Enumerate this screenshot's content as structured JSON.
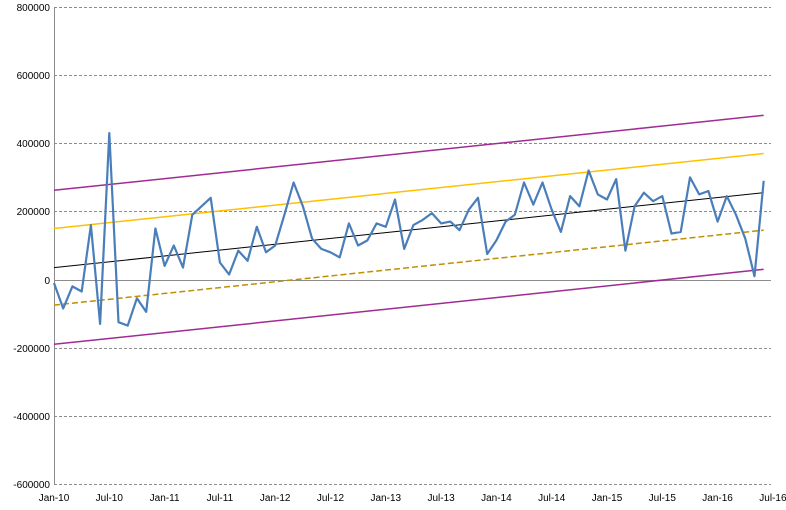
{
  "chart_data": {
    "type": "line",
    "title": "",
    "xlabel": "",
    "ylabel": "",
    "ylim": [
      -600000,
      800000
    ],
    "y_ticks": [
      800000,
      600000,
      400000,
      200000,
      0,
      -200000,
      -400000,
      -600000
    ],
    "y_tick_labels": [
      "800000",
      "600000",
      "400000",
      "200000",
      "0",
      "-200000",
      "-400000",
      "-600000"
    ],
    "x_tick_labels": [
      "Jan-10",
      "Jul-10",
      "Jan-11",
      "Jul-11",
      "Jan-12",
      "Jul-12",
      "Jan-13",
      "Jul-13",
      "Jan-14",
      "Jul-14",
      "Jan-15",
      "Jul-15",
      "Jan-16",
      "Jul-16"
    ],
    "x_start": "Jan-10",
    "grid": {
      "horizontal": true,
      "style": "dashed"
    },
    "legend": "none",
    "series": [
      {
        "color": "#4a7ebb",
        "values": [
          -10000,
          -85000,
          -20000,
          -35000,
          160000,
          -130000,
          430000,
          -125000,
          -135000,
          -55000,
          -95000,
          150000,
          40000,
          100000,
          35000,
          190000,
          215000,
          240000,
          50000,
          15000,
          85000,
          55000,
          155000,
          80000,
          100000,
          190000,
          285000,
          215000,
          120000,
          90000,
          80000,
          65000,
          165000,
          100000,
          115000,
          165000,
          155000,
          235000,
          90000,
          160000,
          175000,
          195000,
          165000,
          170000,
          145000,
          205000,
          240000,
          75000,
          115000,
          170000,
          190000,
          285000,
          220000,
          285000,
          205000,
          140000,
          245000,
          215000,
          320000,
          250000,
          235000,
          295000,
          85000,
          215000,
          255000,
          230000,
          245000,
          135000,
          140000,
          300000,
          250000,
          260000,
          170000,
          245000,
          190000,
          120000,
          10000,
          290000
        ]
      }
    ],
    "reference_lines": [
      {
        "kind": "trend",
        "color": "#000000",
        "dashed": false,
        "start": 35000,
        "end": 255000
      },
      {
        "kind": "upper_1",
        "color": "#ffc000",
        "dashed": false,
        "start": 150000,
        "end": 370000
      },
      {
        "kind": "lower_1",
        "color": "#c09000",
        "dashed": true,
        "start": -75000,
        "end": 145000
      },
      {
        "kind": "upper_2",
        "color": "#a02b93",
        "dashed": false,
        "start": 262000,
        "end": 482000
      },
      {
        "kind": "lower_2",
        "color": "#a02b93",
        "dashed": false,
        "start": -190000,
        "end": 30000
      }
    ]
  }
}
